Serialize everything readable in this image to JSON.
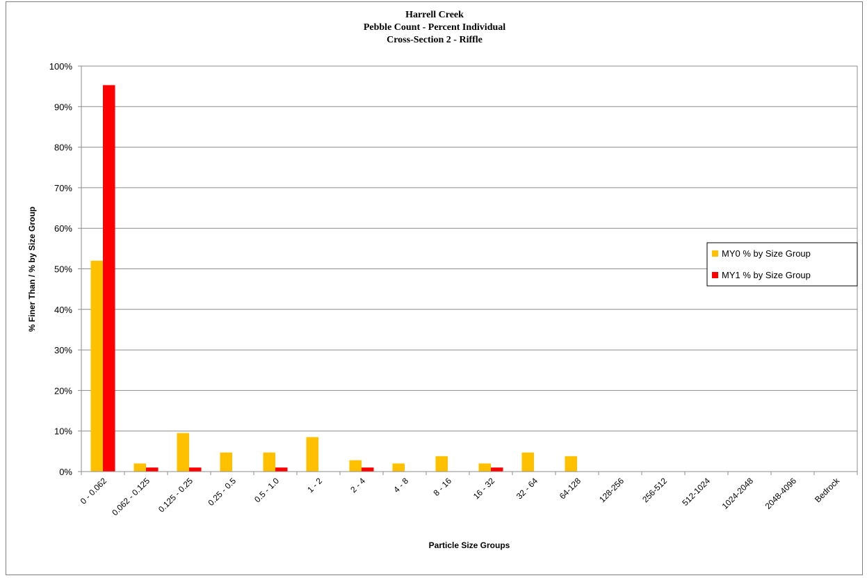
{
  "chart_data": {
    "type": "bar",
    "title_lines": [
      "Harrell Creek",
      "Pebble Count - Percent Individual",
      "Cross-Section 2 - Riffle"
    ],
    "xlabel": "Particle Size Groups",
    "ylabel": "% Finer Than / % by Size Group",
    "ylim": [
      0,
      100
    ],
    "y_ticks": [
      "0%",
      "10%",
      "20%",
      "30%",
      "40%",
      "50%",
      "60%",
      "70%",
      "80%",
      "90%",
      "100%"
    ],
    "grid": true,
    "legend_position": "right",
    "categories": [
      "0 - 0.062",
      "0.062 - 0.125",
      "0.125 - 0.25",
      "0.25 - 0.5",
      "0.5 - 1.0",
      "1 - 2",
      "2 - 4",
      "4 - 8",
      "8 - 16",
      "16 - 32",
      "32 - 64",
      "64-128",
      "128-256",
      "256-512",
      "512-1024",
      "1024-2048",
      "2048-4096",
      "Bedrock"
    ],
    "series": [
      {
        "name": "MY0 % by Size Group",
        "color": "#FFC000",
        "values": [
          52,
          2,
          9.5,
          4.7,
          4.7,
          8.5,
          2.8,
          2,
          3.8,
          2,
          4.7,
          3.8,
          0,
          0,
          0,
          0,
          0,
          0
        ]
      },
      {
        "name": "MY1 % by Size Group",
        "color": "#FF0000",
        "values": [
          95.3,
          1,
          1,
          0,
          1,
          0,
          1,
          0,
          0,
          1,
          0,
          0,
          0,
          0,
          0,
          0,
          0,
          0
        ]
      }
    ]
  }
}
